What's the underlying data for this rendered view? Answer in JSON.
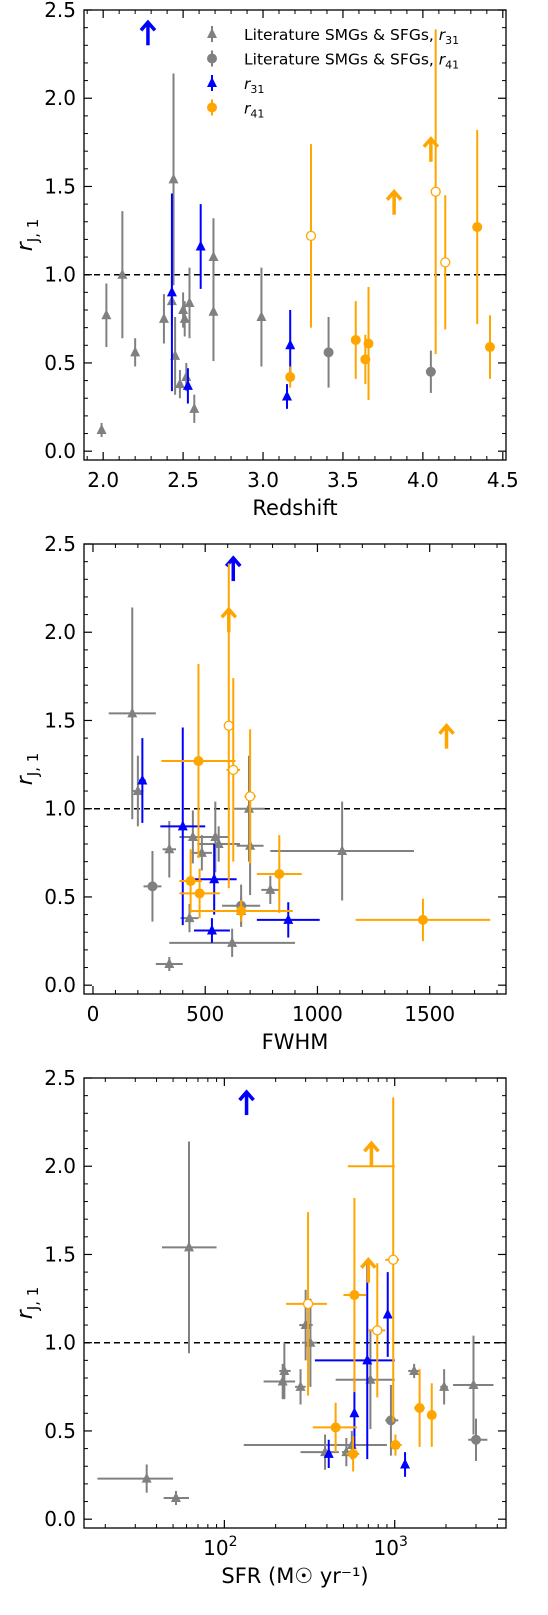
{
  "chart_data": [
    {
      "type": "scatter",
      "xlabel": "Redshift",
      "ylabel": "r_{J,1}",
      "xscale": "linear",
      "xlim": [
        1.88,
        4.52
      ],
      "ylim": [
        -0.05,
        2.5
      ],
      "xticks": [
        2.0,
        2.5,
        3.0,
        3.5,
        4.0,
        4.5
      ],
      "xtick_labels": [
        "2.0",
        "2.5",
        "3.0",
        "3.5",
        "4.0",
        "4.5"
      ],
      "yticks": [
        0.0,
        0.5,
        1.0,
        1.5,
        2.0,
        2.5
      ],
      "ytick_labels": [
        "0.0",
        "0.5",
        "1.0",
        "1.5",
        "2.0",
        "2.5"
      ],
      "hline": 1.0,
      "legend": {
        "placement": "top-right",
        "entries": [
          {
            "label": "Literature SMGs & SFGs,  r31",
            "color": "#808080",
            "marker": "triangle"
          },
          {
            "label": "Literature SMGs & SFGs, r41",
            "color": "#808080",
            "marker": "circle"
          },
          {
            "label": "r31",
            "color": "#0000ff",
            "marker": "triangle"
          },
          {
            "label": "r41",
            "color": "#ffa500",
            "marker": "circle"
          }
        ]
      },
      "series": [
        {
          "name": "Literature SMGs & SFGs,  r31",
          "color": "#808080",
          "marker": "triangle",
          "points": [
            {
              "x": 1.99,
              "y": 0.12,
              "yerr": 0.04
            },
            {
              "x": 2.02,
              "y": 0.77,
              "yerr": 0.18
            },
            {
              "x": 2.12,
              "y": 1.0,
              "yerr": 0.36
            },
            {
              "x": 2.2,
              "y": 0.56,
              "yerr": 0.08
            },
            {
              "x": 2.38,
              "y": 0.75,
              "yerr": 0.14
            },
            {
              "x": 2.43,
              "y": 0.85,
              "yerr": 0.14
            },
            {
              "x": 2.44,
              "y": 1.54,
              "yerr": 0.6
            },
            {
              "x": 2.45,
              "y": 0.54,
              "yerr": 0.22
            },
            {
              "x": 2.48,
              "y": 0.38,
              "yerr": 0.08
            },
            {
              "x": 2.5,
              "y": 0.8,
              "yerr": 0.1
            },
            {
              "x": 2.51,
              "y": 0.75,
              "yerr": 0.1
            },
            {
              "x": 2.52,
              "y": 0.42,
              "yerr": 0.08
            },
            {
              "x": 2.54,
              "y": 0.84,
              "yerr": 0.2
            },
            {
              "x": 2.57,
              "y": 0.24,
              "yerr": 0.08
            },
            {
              "x": 2.69,
              "y": 1.1,
              "yerr": 0.22
            },
            {
              "x": 2.69,
              "y": 0.79,
              "yerr": 0.28
            },
            {
              "x": 2.99,
              "y": 0.76,
              "yerr": 0.28
            }
          ]
        },
        {
          "name": "Literature SMGs & SFGs, r41",
          "color": "#808080",
          "marker": "circle",
          "points": [
            {
              "x": 3.41,
              "y": 0.56,
              "yerr": 0.2
            },
            {
              "x": 4.05,
              "y": 0.45,
              "yerr": 0.12
            }
          ]
        },
        {
          "name": "r31",
          "color": "#0000ff",
          "marker": "triangle",
          "points": [
            {
              "x": 2.43,
              "y": 0.9,
              "yerr": 0.56
            },
            {
              "x": 2.53,
              "y": 0.37,
              "yerr": 0.1
            },
            {
              "x": 2.61,
              "y": 1.16,
              "yerr": 0.24
            },
            {
              "x": 3.15,
              "y": 0.31,
              "yerr": 0.07
            },
            {
              "x": 3.17,
              "y": 0.6,
              "yerr": 0.2
            },
            {
              "x": 2.28,
              "y": 2.3,
              "lower_limit": true
            }
          ]
        },
        {
          "name": "r41",
          "color": "#ffa500",
          "marker": "circle",
          "points": [
            {
              "x": 3.17,
              "y": 0.42,
              "yerr": 0.06
            },
            {
              "x": 3.3,
              "y": 1.22,
              "yerr": 0.52,
              "open": true
            },
            {
              "x": 3.58,
              "y": 0.63,
              "yerr": 0.22
            },
            {
              "x": 3.64,
              "y": 0.52,
              "yerr": 0.14
            },
            {
              "x": 3.66,
              "y": 0.61,
              "yerr": 0.32
            },
            {
              "x": 4.08,
              "y": 1.47,
              "yerr": 0.92,
              "open": true
            },
            {
              "x": 4.14,
              "y": 1.07,
              "yerr": 0.38,
              "open": true
            },
            {
              "x": 4.34,
              "y": 1.27,
              "yerr": 0.55
            },
            {
              "x": 4.42,
              "y": 0.59,
              "yerr": 0.18
            },
            {
              "x": 3.82,
              "y": 1.34,
              "lower_limit": true
            },
            {
              "x": 4.05,
              "y": 1.64,
              "lower_limit": true
            }
          ]
        }
      ]
    },
    {
      "type": "scatter",
      "xlabel": "FWHM",
      "ylabel": "r_{J,1}",
      "xscale": "linear",
      "xlim": [
        -40,
        1840
      ],
      "ylim": [
        -0.05,
        2.5
      ],
      "xticks": [
        0,
        500,
        1000,
        1500
      ],
      "xtick_labels": [
        "0",
        "500",
        "1000",
        "1500"
      ],
      "yticks": [
        0.0,
        0.5,
        1.0,
        1.5,
        2.0,
        2.5
      ],
      "ytick_labels": [
        "0.0",
        "0.5",
        "1.0",
        "1.5",
        "2.0",
        "2.5"
      ],
      "hline": 1.0,
      "series": [
        {
          "name": "Literature SMGs & SFGs,  r31",
          "color": "#808080",
          "marker": "triangle",
          "points": [
            {
              "x": 175,
              "y": 1.54,
              "xerr": 105,
              "yerr": 0.6
            },
            {
              "x": 200,
              "y": 1.1,
              "xerr": 25,
              "yerr": 0.2
            },
            {
              "x": 340,
              "y": 0.12,
              "xerr": 60,
              "yerr": 0.04
            },
            {
              "x": 340,
              "y": 0.77,
              "xerr": 30,
              "yerr": 0.16
            },
            {
              "x": 430,
              "y": 0.38,
              "xerr": 40,
              "yerr": 0.08
            },
            {
              "x": 445,
              "y": 0.84,
              "xerr": 60,
              "yerr": 0.15
            },
            {
              "x": 485,
              "y": 0.75,
              "xerr": 45,
              "yerr": 0.1
            },
            {
              "x": 545,
              "y": 0.84,
              "xerr": 60,
              "yerr": 0.2
            },
            {
              "x": 560,
              "y": 0.8,
              "xerr": 95,
              "yerr": 0.1
            },
            {
              "x": 620,
              "y": 0.24,
              "xerr": 280,
              "yerr": 0.08
            },
            {
              "x": 660,
              "y": 0.42,
              "xerr": 200,
              "yerr": 0.08
            },
            {
              "x": 695,
              "y": 1.0,
              "xerr": 70,
              "yerr": 0.3
            },
            {
              "x": 700,
              "y": 0.79,
              "xerr": 60,
              "yerr": 0.28
            },
            {
              "x": 790,
              "y": 0.54,
              "xerr": 40,
              "yerr": 0.08
            },
            {
              "x": 1110,
              "y": 0.76,
              "xerr": 320,
              "yerr": 0.28
            }
          ]
        },
        {
          "name": "Literature SMGs & SFGs, r41",
          "color": "#808080",
          "marker": "circle",
          "points": [
            {
              "x": 265,
              "y": 0.56,
              "xerr": 40,
              "yerr": 0.2
            },
            {
              "x": 660,
              "y": 0.45,
              "xerr": 85,
              "yerr": 0.12
            }
          ]
        },
        {
          "name": "r31",
          "color": "#0000ff",
          "marker": "triangle",
          "points": [
            {
              "x": 220,
              "y": 1.16,
              "xerr": 15,
              "yerr": 0.24
            },
            {
              "x": 400,
              "y": 0.9,
              "xerr": 100,
              "yerr": 0.56
            },
            {
              "x": 530,
              "y": 0.31,
              "xerr": 80,
              "yerr": 0.07
            },
            {
              "x": 540,
              "y": 0.6,
              "xerr": 100,
              "yerr": 0.2
            },
            {
              "x": 870,
              "y": 0.37,
              "xerr": 140,
              "yerr": 0.1
            },
            {
              "x": 625,
              "y": 2.29,
              "lower_limit": true
            }
          ]
        },
        {
          "name": "r41",
          "color": "#ffa500",
          "marker": "circle",
          "points": [
            {
              "x": 435,
              "y": 0.59,
              "xerr": 50,
              "yerr": 0.18
            },
            {
              "x": 470,
              "y": 1.27,
              "xerr": 165,
              "yerr": 0.55
            },
            {
              "x": 475,
              "y": 0.52,
              "xerr": 90,
              "yerr": 0.14
            },
            {
              "x": 605,
              "y": 1.47,
              "xerr": 20,
              "yerr": 0.92,
              "open": true
            },
            {
              "x": 625,
              "y": 1.22,
              "xerr": 30,
              "yerr": 0.52,
              "open": true
            },
            {
              "x": 660,
              "y": 0.42,
              "xerr": 230,
              "yerr": 0.06
            },
            {
              "x": 700,
              "y": 1.07,
              "xerr": 25,
              "yerr": 0.38,
              "open": true
            },
            {
              "x": 830,
              "y": 0.63,
              "xerr": 100,
              "yerr": 0.22
            },
            {
              "x": 1470,
              "y": 0.37,
              "xerr": 300,
              "yerr": 0.12
            },
            {
              "x": 605,
              "y": 2.0,
              "lower_limit": true
            },
            {
              "x": 1575,
              "y": 1.34,
              "lower_limit": true
            }
          ]
        }
      ]
    },
    {
      "type": "scatter",
      "xlabel": "SFR (M☉ yr⁻¹)",
      "ylabel": "r_{J,1}",
      "xscale": "log",
      "xlim": [
        15,
        4500
      ],
      "ylim": [
        -0.05,
        2.5
      ],
      "xticks": [
        100,
        1000
      ],
      "xtick_labels": [
        "10^2",
        "10^3"
      ],
      "yticks": [
        0.0,
        0.5,
        1.0,
        1.5,
        2.0,
        2.5
      ],
      "ytick_labels": [
        "0.0",
        "0.5",
        "1.0",
        "1.5",
        "2.0",
        "2.5"
      ],
      "hline": 1.0,
      "series": [
        {
          "name": "Literature SMGs & SFGs,  r31",
          "color": "#808080",
          "marker": "triangle",
          "points": [
            {
              "x": 35,
              "y": 0.23,
              "xlo": 18,
              "xhi": 50,
              "yerr": 0.08
            },
            {
              "x": 52,
              "y": 0.12,
              "xlo": 44,
              "xhi": 62,
              "yerr": 0.04
            },
            {
              "x": 62,
              "y": 1.54,
              "xlo": 43,
              "xhi": 90,
              "yerr": 0.6
            },
            {
              "x": 220,
              "y": 0.78,
              "xlo": 170,
              "xhi": 260,
              "yerr": 0.1
            },
            {
              "x": 225,
              "y": 0.84,
              "xlo": 210,
              "xhi": 245,
              "yerr": 0.16
            },
            {
              "x": 280,
              "y": 0.75,
              "xlo": 260,
              "xhi": 300,
              "yerr": 0.1
            },
            {
              "x": 300,
              "y": 1.1,
              "xlo": 275,
              "xhi": 330,
              "yerr": 0.2
            },
            {
              "x": 320,
              "y": 1.0,
              "xlo": 285,
              "xhi": 350,
              "yerr": 0.25
            },
            {
              "x": 390,
              "y": 0.38,
              "xlo": 280,
              "xhi": 470,
              "yerr": 0.1
            },
            {
              "x": 520,
              "y": 0.38,
              "xlo": 490,
              "xhi": 560,
              "yerr": 0.08
            },
            {
              "x": 560,
              "y": 0.42,
              "xlo": 130,
              "xhi": 900,
              "yerr": 0.08
            },
            {
              "x": 720,
              "y": 0.79,
              "xlo": 450,
              "xhi": 1000,
              "yerr": 0.28
            },
            {
              "x": 1300,
              "y": 0.84,
              "xlo": 1200,
              "xhi": 1400,
              "yerr": 0.04
            },
            {
              "x": 1950,
              "y": 0.75,
              "xlo": 1850,
              "xhi": 2050,
              "yerr": 0.1
            },
            {
              "x": 2900,
              "y": 0.76,
              "xlo": 2200,
              "xhi": 3800,
              "yerr": 0.28
            }
          ]
        },
        {
          "name": "Literature SMGs & SFGs, r41",
          "color": "#808080",
          "marker": "circle",
          "points": [
            {
              "x": 950,
              "y": 0.56,
              "xlo": 880,
              "xhi": 1050,
              "yerr": 0.2
            },
            {
              "x": 3000,
              "y": 0.45,
              "xlo": 2700,
              "xhi": 3500,
              "yerr": 0.12
            }
          ]
        },
        {
          "name": "r31",
          "color": "#0000ff",
          "marker": "triangle",
          "points": [
            {
              "x": 410,
              "y": 0.37,
              "yerr": 0.08
            },
            {
              "x": 580,
              "y": 0.6,
              "yerr": 0.2
            },
            {
              "x": 690,
              "y": 0.9,
              "xlo": 340,
              "xhi": 1000,
              "yerr": 0.56
            },
            {
              "x": 910,
              "y": 1.16,
              "xlo": 880,
              "xhi": 940,
              "yerr": 0.24
            },
            {
              "x": 1150,
              "y": 0.31,
              "yerr": 0.07
            },
            {
              "x": 135,
              "y": 2.29,
              "lower_limit": true
            }
          ]
        },
        {
          "name": "r41",
          "color": "#ffa500",
          "marker": "circle",
          "points": [
            {
              "x": 310,
              "y": 1.22,
              "xlo": 230,
              "xhi": 400,
              "yerr": 0.52,
              "open": true
            },
            {
              "x": 450,
              "y": 0.52,
              "xlo": 330,
              "xhi": 600,
              "yerr": 0.14
            },
            {
              "x": 570,
              "y": 0.37,
              "xlo": 520,
              "xhi": 620,
              "yerr": 0.1
            },
            {
              "x": 580,
              "y": 1.27,
              "xlo": 500,
              "xhi": 680,
              "yerr": 0.55
            },
            {
              "x": 790,
              "y": 1.07,
              "xlo": 700,
              "xhi": 880,
              "yerr": 0.38,
              "open": true
            },
            {
              "x": 980,
              "y": 1.47,
              "xlo": 880,
              "xhi": 1060,
              "yerr": 0.92,
              "open": true
            },
            {
              "x": 1010,
              "y": 0.42,
              "xlo": 950,
              "xhi": 1100,
              "yerr": 0.06
            },
            {
              "x": 1400,
              "y": 0.63,
              "xlo": 1300,
              "xhi": 1500,
              "yerr": 0.22
            },
            {
              "x": 1650,
              "y": 0.59,
              "xlo": 1550,
              "xhi": 1750,
              "yerr": 0.18
            },
            {
              "x": 700,
              "y": 1.34,
              "lower_limit": true
            },
            {
              "x": 730,
              "y": 2.0,
              "xlo": 530,
              "xhi": 1000,
              "lower_limit": true
            }
          ]
        }
      ]
    }
  ]
}
